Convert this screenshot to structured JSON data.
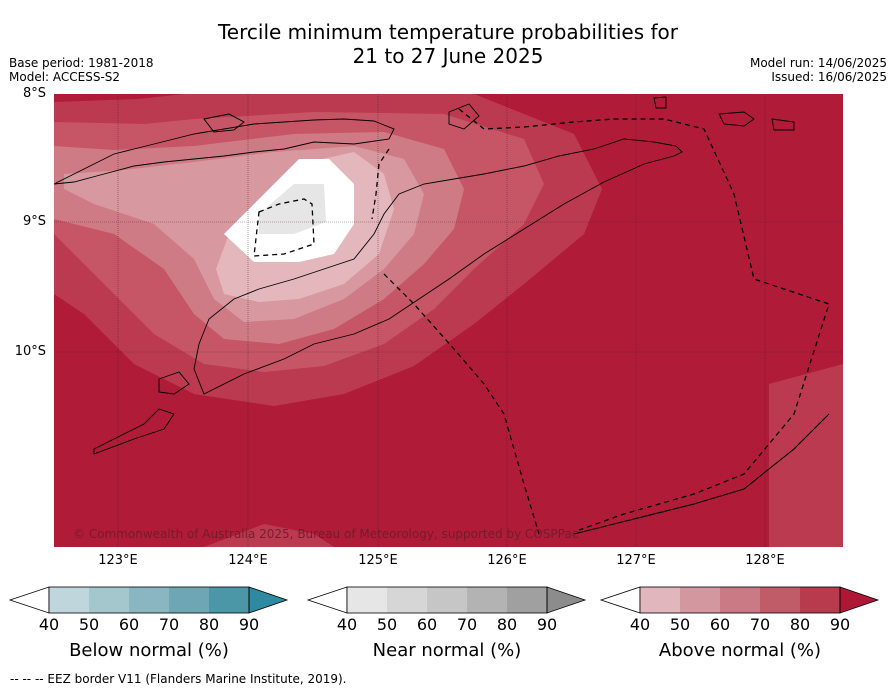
{
  "title_line1": "Tercile minimum temperature probabilities for",
  "title_line2": "21 to 27 June 2025",
  "meta_left": [
    "Base period: 1981-2018",
    "Model: ACCESS-S2"
  ],
  "meta_right": [
    "Model run: 14/06/2025",
    "Issued: 16/06/2025"
  ],
  "lat_labels": [
    "8°S",
    "9°S",
    "10°S"
  ],
  "lon_labels": [
    "123°E",
    "124°E",
    "125°E",
    "126°E",
    "127°E",
    "128°E"
  ],
  "copyright": "© Commonwealth of Australia 2025, Bureau of Meteorology, supported by COSPPac",
  "colorbars": [
    {
      "title": "Below normal (%)",
      "ticks": [
        "40",
        "50",
        "60",
        "70",
        "80",
        "90"
      ],
      "colors": [
        "#bfd6dc",
        "#a4c6cd",
        "#89b6c0",
        "#6ea6b3",
        "#4b97a8",
        "#2e8aa0"
      ]
    },
    {
      "title": "Near normal (%)",
      "ticks": [
        "40",
        "50",
        "60",
        "70",
        "80",
        "90"
      ],
      "colors": [
        "#e6e6e6",
        "#d6d6d6",
        "#c6c6c6",
        "#b3b3b3",
        "#a0a0a0",
        "#8c8c8c"
      ]
    },
    {
      "title": "Above normal (%)",
      "ticks": [
        "40",
        "50",
        "60",
        "70",
        "80",
        "90"
      ],
      "colors": [
        "#e1b6bd",
        "#d3979f",
        "#c97a84",
        "#c05b68",
        "#b83a4d",
        "#ae1836"
      ]
    }
  ],
  "map_colors": {
    "ocean_base": "#b01c38",
    "above_80": "#bc3a4f",
    "above_70": "#c65665",
    "above_60": "#cf7b85",
    "above_50": "#d8989f",
    "above_40": "#e3b7bc",
    "white": "#ffffff",
    "near_40": "#e6e6e6"
  },
  "footnote": "--  --  -- EEZ border V11 (Flanders Marine Institute, 2019)."
}
